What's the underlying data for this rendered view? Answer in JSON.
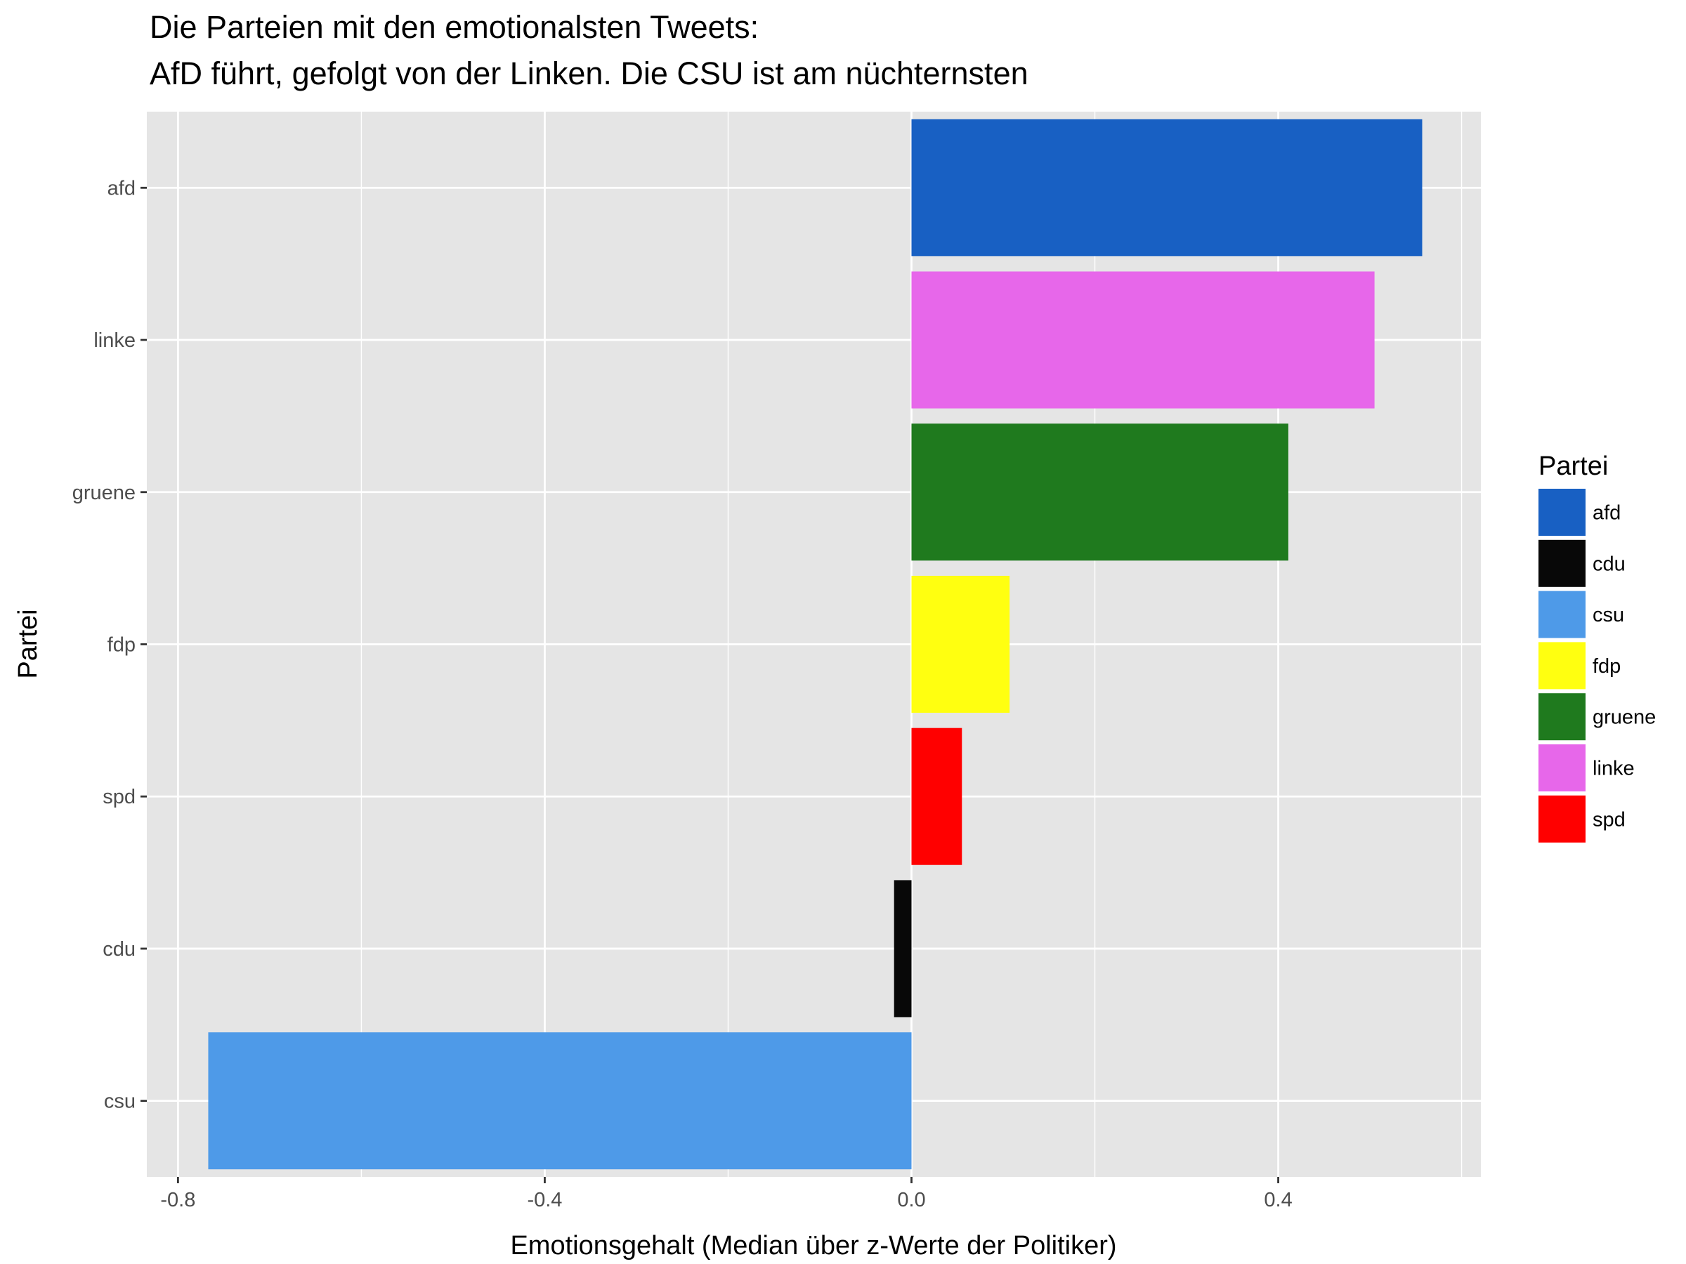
{
  "chart_data": {
    "type": "bar",
    "orientation": "horizontal",
    "title_lines": [
      "Die Parteien mit den emotionalsten Tweets:",
      "AfD führt, gefolgt von der Linken. Die CSU ist am nüchternsten"
    ],
    "xlabel": "Emotionsgehalt (Median über z-Werte der Politiker)",
    "ylabel": "Partei",
    "categories": [
      "afd",
      "linke",
      "gruene",
      "fdp",
      "spd",
      "cdu",
      "csu"
    ],
    "values": [
      0.557,
      0.505,
      0.411,
      0.107,
      0.055,
      -0.019,
      -0.767
    ],
    "bar_colors": [
      "#1860C3",
      "#E767EA",
      "#1F7A1E",
      "#FFFF10",
      "#FF0000",
      "#080808",
      "#4E9AE8"
    ],
    "xlim": [
      -0.834,
      0.621
    ],
    "x_ticks": [
      -0.8,
      -0.4,
      0.0,
      0.4
    ],
    "x_tick_labels": [
      "-0.8",
      "-0.4",
      "0.0",
      "0.4"
    ],
    "x_minor_ticks": [
      -0.6,
      -0.2,
      0.2,
      0.6
    ],
    "grid": true,
    "legend": {
      "title": "Partei",
      "position": "right",
      "entries": [
        {
          "label": "afd",
          "color": "#1860C3"
        },
        {
          "label": "cdu",
          "color": "#080808"
        },
        {
          "label": "csu",
          "color": "#4E9AE8"
        },
        {
          "label": "fdp",
          "color": "#FFFF10"
        },
        {
          "label": "gruene",
          "color": "#1F7A1E"
        },
        {
          "label": "linke",
          "color": "#E767EA"
        },
        {
          "label": "spd",
          "color": "#FF0000"
        }
      ]
    },
    "panel_color": "#E5E5E5",
    "grid_color": "#FFFFFF"
  }
}
